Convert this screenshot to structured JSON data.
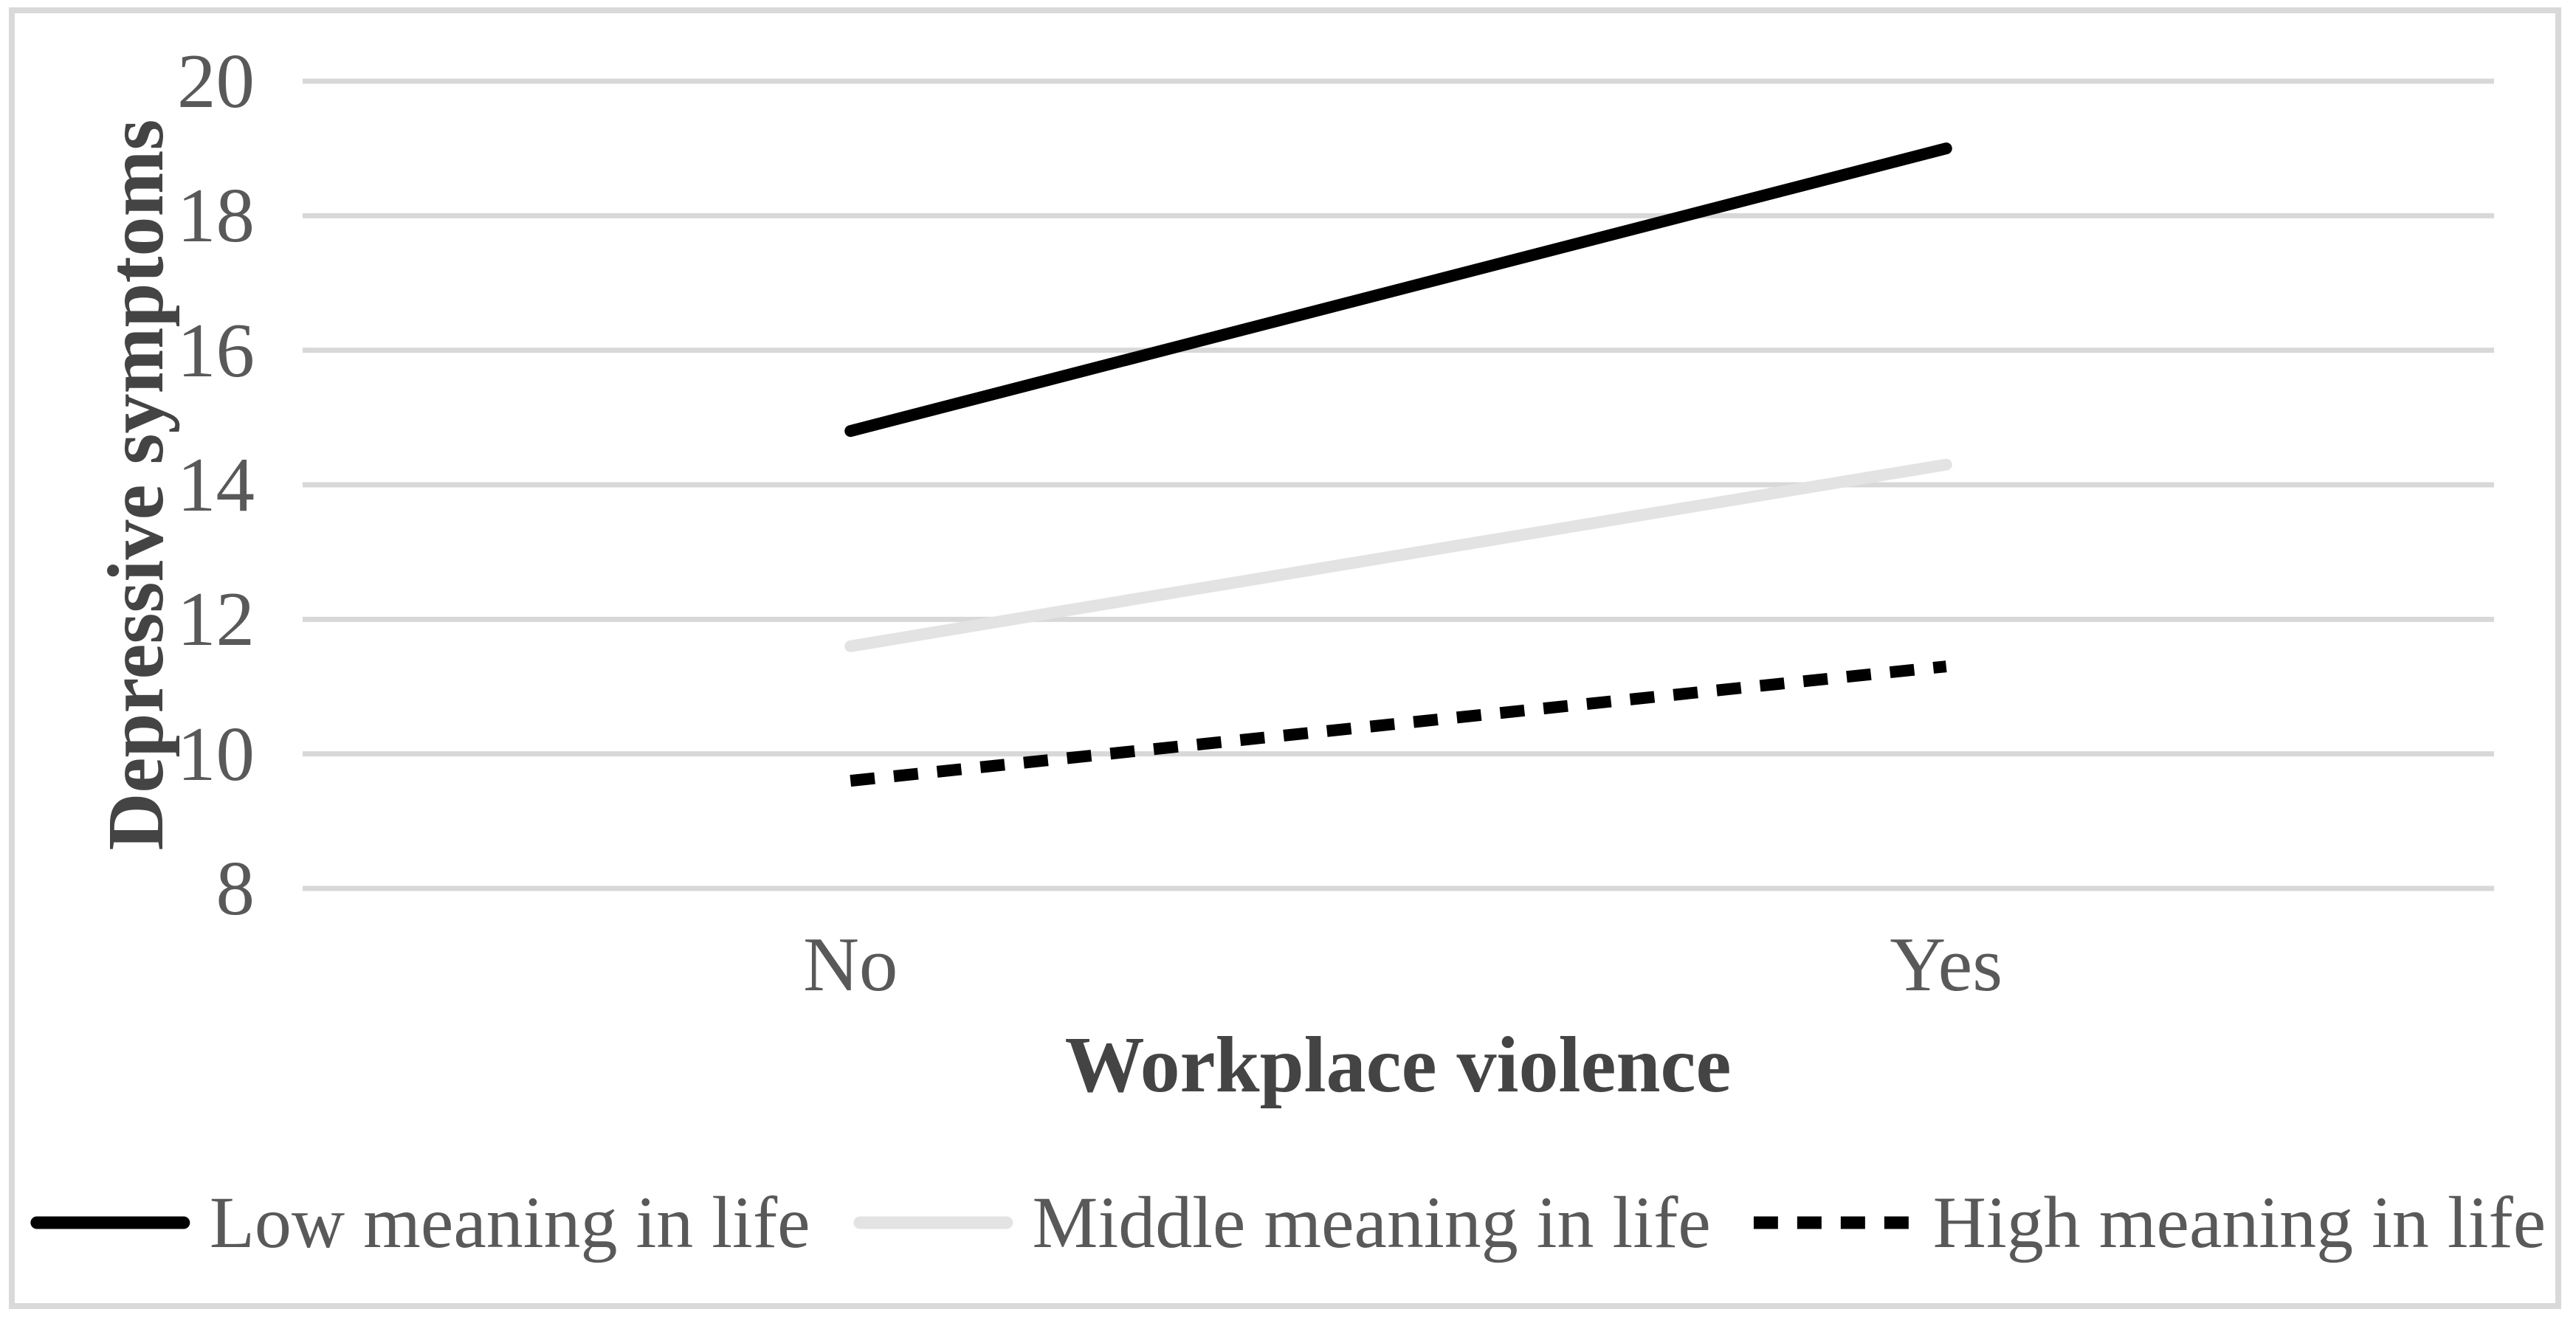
{
  "chart_data": {
    "type": "line",
    "title": "",
    "categories": [
      "No",
      "Yes"
    ],
    "series": [
      {
        "name": "Low meaning in life",
        "values": [
          14.8,
          19.0
        ],
        "line_style": "solid",
        "color": "#000000"
      },
      {
        "name": "Middle meaning in life",
        "values": [
          11.6,
          14.3
        ],
        "line_style": "solid",
        "color": "#e3e3e3"
      },
      {
        "name": "High meaning in life",
        "values": [
          9.6,
          11.3
        ],
        "line_style": "dashed",
        "color": "#000000"
      }
    ],
    "xlabel": "Workplace violence",
    "ylabel": "Depressive symptoms",
    "ylim": [
      8,
      20
    ],
    "yticks": [
      8,
      10,
      12,
      14,
      16,
      18,
      20
    ],
    "grid": "horizontal-only",
    "legend_position": "bottom"
  },
  "colors": {
    "background": "#ffffff",
    "frame_border": "#d9d9d9",
    "gridline": "#d8d8d8",
    "tick_label_text": "#595959",
    "axis_title_text": "#444444",
    "legend_text": "#595959"
  }
}
